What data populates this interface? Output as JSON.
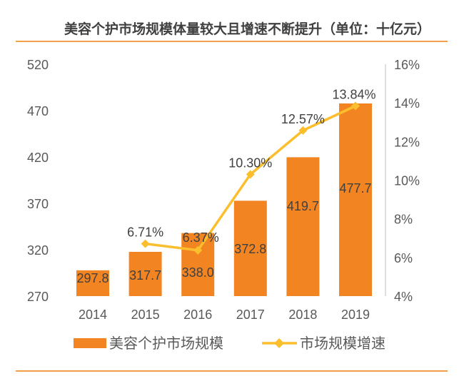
{
  "title": "美容个护市场规模体量较大且增速不断提升（单位：十亿元）",
  "colors": {
    "bar": "#f28522",
    "line": "#fbbf2e",
    "rule": "#f0a04b"
  },
  "chart_data": {
    "type": "bar+line",
    "title": "美容个护市场规模体量较大且增速不断提升（单位：十亿元）",
    "categories": [
      "2014",
      "2015",
      "2016",
      "2017",
      "2018",
      "2019"
    ],
    "series": [
      {
        "name": "美容个护市场规模",
        "type": "bar",
        "axis": "left",
        "values": [
          297.8,
          317.7,
          338.0,
          372.8,
          419.7,
          477.7
        ],
        "labels": [
          "297.8",
          "317.7",
          "338.0",
          "372.8",
          "419.7",
          "477.7"
        ]
      },
      {
        "name": "市场规模增速",
        "type": "line",
        "axis": "right",
        "values": [
          null,
          6.71,
          6.37,
          10.3,
          12.57,
          13.84
        ],
        "labels": [
          "",
          "6.71%",
          "6.37%",
          "10.30%",
          "12.57%",
          "13.84%"
        ]
      }
    ],
    "y_left": {
      "range": [
        270,
        520
      ],
      "ticks": [
        "270",
        "320",
        "370",
        "420",
        "470",
        "520"
      ]
    },
    "y_right": {
      "range": [
        4,
        16
      ],
      "ticks": [
        "4%",
        "6%",
        "8%",
        "10%",
        "12%",
        "14%",
        "16%"
      ]
    },
    "grid": false,
    "legend": "bottom"
  }
}
